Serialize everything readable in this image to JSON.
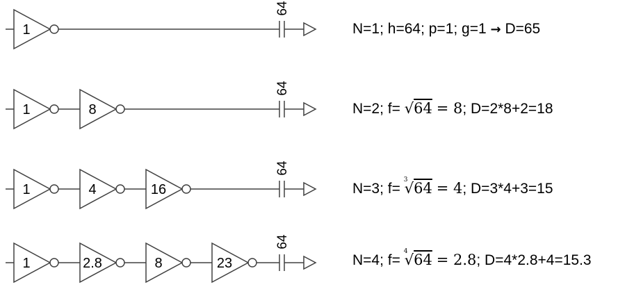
{
  "rows": [
    {
      "gates": [
        "1"
      ],
      "load": "64",
      "equation": {
        "n": "N=1; h=64; p=1; g=1",
        "arrow": "→",
        "result": "D=65"
      }
    },
    {
      "gates": [
        "1",
        "8"
      ],
      "load": "64",
      "equation": {
        "prefix": "N=2; f=",
        "root_index": "",
        "radicand": "64",
        "equals": "= 8",
        "suffix": "; D=2*8+2=18"
      }
    },
    {
      "gates": [
        "1",
        "4",
        "16"
      ],
      "load": "64",
      "equation": {
        "prefix": "N=3; f=",
        "root_index": "3",
        "radicand": "64",
        "equals": "= 4",
        "suffix": "; D=3*4+3=15"
      }
    },
    {
      "gates": [
        "1",
        "2.8",
        "8",
        "23"
      ],
      "load": "64",
      "equation": {
        "prefix": "N=4; f=",
        "root_index": "4",
        "radicand": "64",
        "equals": "= 2.8",
        "suffix": "; D=4*2.8+4=15.3"
      }
    }
  ]
}
